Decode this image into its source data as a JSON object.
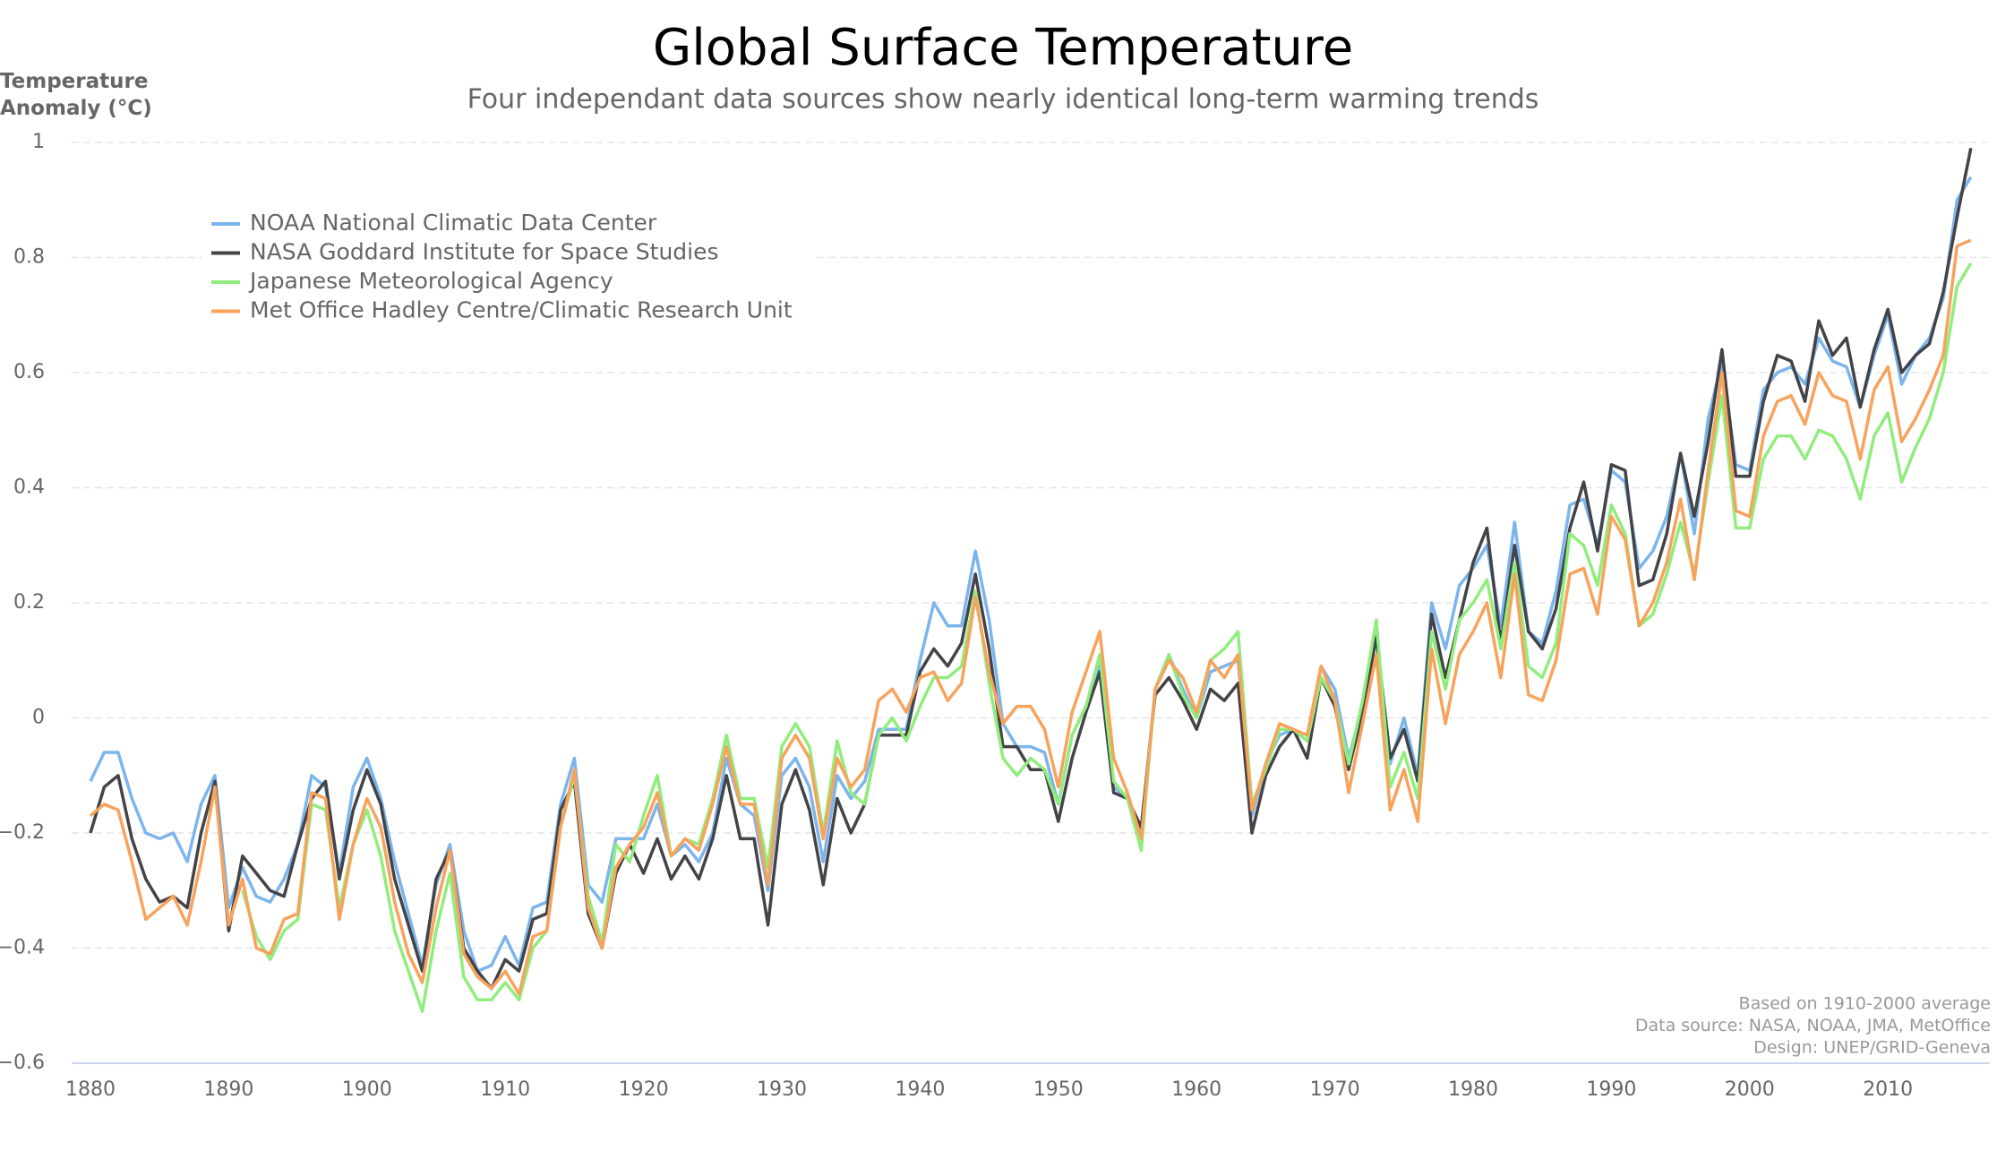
{
  "chart_data": {
    "type": "line",
    "title": "Global Surface Temperature",
    "subtitle": "Four independant data sources show nearly identical long-term warming trends",
    "ylabel": [
      "Temperature",
      "Anomaly (°C)"
    ],
    "xlabel": "",
    "ylim": [
      -0.6,
      1
    ],
    "xlim": [
      1880,
      2016
    ],
    "yticks": [
      1,
      0.8,
      0.6,
      0.4,
      0.2,
      0,
      -0.2,
      -0.4,
      -0.6
    ],
    "ytick_labels": [
      "1",
      "0.8",
      "0.6",
      "0.4",
      "0.2",
      "0",
      "−0.2",
      "−0.4",
      "−0.6"
    ],
    "xticks": [
      1880,
      1890,
      1900,
      1910,
      1920,
      1930,
      1940,
      1950,
      1960,
      1970,
      1980,
      1990,
      2000,
      2010
    ],
    "xtick_labels": [
      "1880",
      "1890",
      "1900",
      "1910",
      "1920",
      "1930",
      "1940",
      "1950",
      "1960",
      "1970",
      "1980",
      "1990",
      "2000",
      "2010"
    ],
    "grid": true,
    "legend_position": "top-left",
    "x_start": 1880,
    "series": [
      {
        "name": "NOAA National Climatic Data Center",
        "color": "#7cb5ec",
        "start": 1880,
        "values": [
          -0.11,
          -0.06,
          -0.06,
          -0.14,
          -0.2,
          -0.21,
          -0.2,
          -0.25,
          -0.15,
          -0.1,
          -0.33,
          -0.26,
          -0.31,
          -0.32,
          -0.28,
          -0.22,
          -0.1,
          -0.12,
          -0.27,
          -0.12,
          -0.07,
          -0.14,
          -0.25,
          -0.34,
          -0.43,
          -0.29,
          -0.22,
          -0.37,
          -0.44,
          -0.43,
          -0.38,
          -0.43,
          -0.33,
          -0.32,
          -0.15,
          -0.07,
          -0.29,
          -0.32,
          -0.21,
          -0.21,
          -0.21,
          -0.15,
          -0.24,
          -0.22,
          -0.25,
          -0.2,
          -0.07,
          -0.15,
          -0.17,
          -0.3,
          -0.1,
          -0.07,
          -0.12,
          -0.25,
          -0.1,
          -0.14,
          -0.11,
          -0.02,
          -0.02,
          -0.02,
          0.1,
          0.2,
          0.16,
          0.16,
          0.29,
          0.17,
          -0.01,
          -0.05,
          -0.05,
          -0.06,
          -0.15,
          -0.03,
          0.02,
          0.09,
          -0.12,
          -0.14,
          -0.2,
          0.05,
          0.11,
          0.05,
          0.0,
          0.08,
          0.09,
          0.1,
          -0.17,
          -0.08,
          -0.03,
          -0.02,
          -0.04,
          0.09,
          0.05,
          -0.07,
          0.02,
          0.15,
          -0.08,
          0.0,
          -0.1,
          0.2,
          0.12,
          0.23,
          0.26,
          0.3,
          0.16,
          0.34,
          0.15,
          0.13,
          0.22,
          0.37,
          0.38,
          0.3,
          0.43,
          0.41,
          0.26,
          0.29,
          0.35,
          0.46,
          0.32,
          0.52,
          0.62,
          0.44,
          0.43,
          0.57,
          0.6,
          0.61,
          0.58,
          0.66,
          0.62,
          0.61,
          0.54,
          0.63,
          0.7,
          0.58,
          0.63,
          0.66,
          0.73,
          0.9,
          0.94
        ]
      },
      {
        "name": "NASA Goddard Institute for Space Studies",
        "color": "#434348",
        "start": 1880,
        "values": [
          -0.2,
          -0.12,
          -0.1,
          -0.21,
          -0.28,
          -0.32,
          -0.31,
          -0.33,
          -0.2,
          -0.11,
          -0.37,
          -0.24,
          -0.27,
          -0.3,
          -0.31,
          -0.22,
          -0.14,
          -0.11,
          -0.28,
          -0.16,
          -0.09,
          -0.15,
          -0.28,
          -0.36,
          -0.44,
          -0.28,
          -0.23,
          -0.4,
          -0.44,
          -0.47,
          -0.42,
          -0.44,
          -0.35,
          -0.34,
          -0.16,
          -0.11,
          -0.34,
          -0.4,
          -0.27,
          -0.22,
          -0.27,
          -0.21,
          -0.28,
          -0.24,
          -0.28,
          -0.21,
          -0.1,
          -0.21,
          -0.21,
          -0.36,
          -0.15,
          -0.09,
          -0.16,
          -0.29,
          -0.14,
          -0.2,
          -0.15,
          -0.03,
          -0.03,
          -0.03,
          0.08,
          0.12,
          0.09,
          0.13,
          0.25,
          0.12,
          -0.05,
          -0.05,
          -0.09,
          -0.09,
          -0.18,
          -0.07,
          0.01,
          0.08,
          -0.13,
          -0.14,
          -0.19,
          0.04,
          0.07,
          0.03,
          -0.02,
          0.05,
          0.03,
          0.06,
          -0.2,
          -0.1,
          -0.05,
          -0.02,
          -0.07,
          0.07,
          0.02,
          -0.09,
          0.01,
          0.14,
          -0.07,
          -0.02,
          -0.11,
          0.18,
          0.07,
          0.17,
          0.27,
          0.33,
          0.13,
          0.3,
          0.15,
          0.12,
          0.19,
          0.33,
          0.41,
          0.29,
          0.44,
          0.43,
          0.23,
          0.24,
          0.32,
          0.46,
          0.35,
          0.48,
          0.64,
          0.42,
          0.42,
          0.55,
          0.63,
          0.62,
          0.55,
          0.69,
          0.63,
          0.66,
          0.54,
          0.64,
          0.71,
          0.6,
          0.63,
          0.65,
          0.74,
          0.87,
          0.99
        ]
      },
      {
        "name": "Japanese Meteorological Agency",
        "color": "#90ed7d",
        "start": 1891,
        "values": [
          -0.3,
          -0.38,
          -0.42,
          -0.37,
          -0.35,
          -0.15,
          -0.16,
          -0.33,
          -0.22,
          -0.16,
          -0.24,
          -0.37,
          -0.44,
          -0.51,
          -0.37,
          -0.27,
          -0.45,
          -0.49,
          -0.49,
          -0.46,
          -0.49,
          -0.4,
          -0.37,
          -0.19,
          -0.1,
          -0.31,
          -0.39,
          -0.22,
          -0.25,
          -0.17,
          -0.1,
          -0.24,
          -0.21,
          -0.22,
          -0.14,
          -0.03,
          -0.14,
          -0.14,
          -0.26,
          -0.05,
          -0.01,
          -0.05,
          -0.2,
          -0.04,
          -0.13,
          -0.15,
          -0.03,
          0.0,
          -0.04,
          0.02,
          0.07,
          0.07,
          0.09,
          0.22,
          0.06,
          -0.07,
          -0.1,
          -0.07,
          -0.09,
          -0.15,
          -0.03,
          0.02,
          0.11,
          -0.11,
          -0.14,
          -0.23,
          0.05,
          0.11,
          0.04,
          0.0,
          0.1,
          0.12,
          0.15,
          -0.15,
          -0.09,
          -0.02,
          -0.02,
          -0.04,
          0.07,
          0.03,
          -0.08,
          0.03,
          0.17,
          -0.12,
          -0.06,
          -0.14,
          0.15,
          0.05,
          0.17,
          0.2,
          0.24,
          0.12,
          0.27,
          0.09,
          0.07,
          0.13,
          0.32,
          0.3,
          0.23,
          0.37,
          0.32,
          0.16,
          0.18,
          0.25,
          0.34,
          0.25,
          0.41,
          0.56,
          0.33,
          0.33,
          0.45,
          0.49,
          0.49,
          0.45,
          0.5,
          0.49,
          0.45,
          0.38,
          0.49,
          0.53,
          0.41,
          0.47,
          0.52,
          0.6,
          0.75,
          0.79
        ]
      },
      {
        "name": "Met Office Hadley Centre/Climatic Research Unit",
        "color": "#f7a35c",
        "start": 1880,
        "values": [
          -0.17,
          -0.15,
          -0.16,
          -0.25,
          -0.35,
          -0.33,
          -0.31,
          -0.36,
          -0.25,
          -0.12,
          -0.36,
          -0.28,
          -0.4,
          -0.41,
          -0.35,
          -0.34,
          -0.13,
          -0.14,
          -0.35,
          -0.22,
          -0.14,
          -0.19,
          -0.32,
          -0.41,
          -0.46,
          -0.33,
          -0.23,
          -0.41,
          -0.45,
          -0.47,
          -0.44,
          -0.48,
          -0.38,
          -0.37,
          -0.19,
          -0.09,
          -0.33,
          -0.4,
          -0.26,
          -0.22,
          -0.19,
          -0.13,
          -0.24,
          -0.21,
          -0.23,
          -0.15,
          -0.05,
          -0.15,
          -0.15,
          -0.29,
          -0.07,
          -0.03,
          -0.07,
          -0.21,
          -0.07,
          -0.12,
          -0.09,
          0.03,
          0.05,
          0.01,
          0.07,
          0.08,
          0.03,
          0.06,
          0.21,
          0.08,
          -0.01,
          0.02,
          0.02,
          -0.02,
          -0.12,
          0.01,
          0.08,
          0.15,
          -0.07,
          -0.13,
          -0.21,
          0.05,
          0.1,
          0.07,
          0.01,
          0.1,
          0.07,
          0.11,
          -0.16,
          -0.08,
          -0.01,
          -0.02,
          -0.03,
          0.09,
          0.03,
          -0.13,
          -0.01,
          0.11,
          -0.16,
          -0.09,
          -0.18,
          0.12,
          -0.01,
          0.11,
          0.15,
          0.2,
          0.07,
          0.25,
          0.04,
          0.03,
          0.1,
          0.25,
          0.26,
          0.18,
          0.35,
          0.31,
          0.16,
          0.2,
          0.27,
          0.38,
          0.24,
          0.43,
          0.6,
          0.36,
          0.35,
          0.49,
          0.55,
          0.56,
          0.51,
          0.6,
          0.56,
          0.55,
          0.45,
          0.57,
          0.61,
          0.48,
          0.52,
          0.57,
          0.63,
          0.82,
          0.83
        ]
      }
    ],
    "credits": [
      "Based on 1910-2000 average",
      "Data source: NASA, NOAA, JMA, MetOffice",
      "Design: UNEP/GRID-Geneva"
    ]
  }
}
